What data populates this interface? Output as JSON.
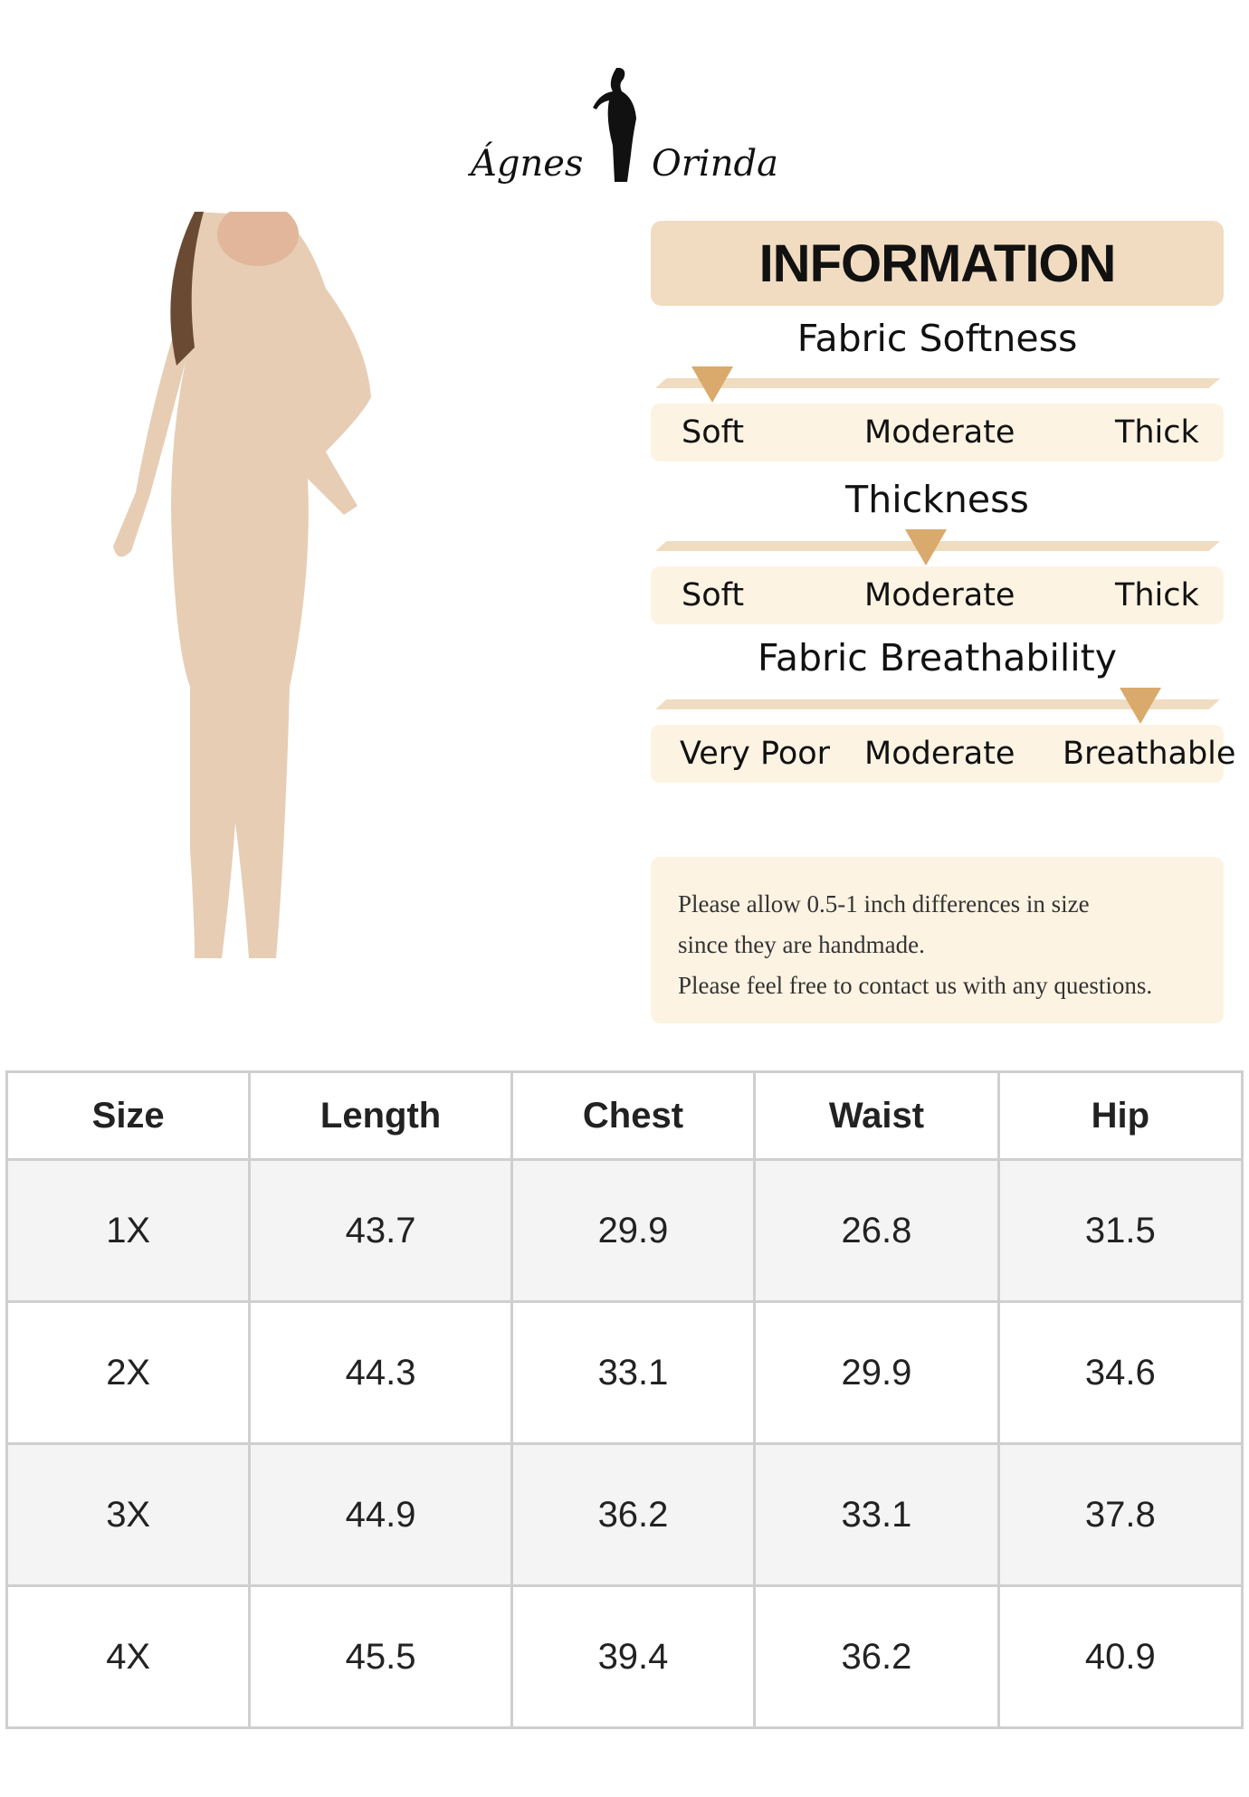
{
  "logo": {
    "brand": "Ágnes Orinda"
  },
  "info": {
    "heading": "INFORMATION",
    "scales": [
      {
        "title": "Fabric Softness",
        "labels": [
          "Soft",
          "Moderate",
          "Thick"
        ],
        "selected": "Soft",
        "level": 0.05
      },
      {
        "title": "Thickness",
        "labels": [
          "Soft",
          "Moderate",
          "Thick"
        ],
        "selected": "Moderate",
        "level": 0.5
      },
      {
        "title": "Fabric Breathability",
        "labels": [
          "Very Poor",
          "Moderate",
          "Breathable"
        ],
        "selected": "Breathable",
        "level": 0.9
      }
    ],
    "note": [
      "Please allow 0.5-1 inch differences in size",
      "since they are handmade.",
      "Please feel free to contact us with any questions."
    ]
  },
  "colors": {
    "header_bg": "#f1dcc1",
    "band_bg": "#fdf3e2",
    "marker": "#d9aa6b"
  },
  "size_table": {
    "headers": [
      "Size",
      "Length",
      "Chest",
      "Waist",
      "Hip"
    ],
    "rows": [
      [
        "1X",
        "43.7",
        "29.9",
        "26.8",
        "31.5"
      ],
      [
        "2X",
        "44.3",
        "33.1",
        "29.9",
        "34.6"
      ],
      [
        "3X",
        "44.9",
        "36.2",
        "33.1",
        "37.8"
      ],
      [
        "4X",
        "45.5",
        "39.4",
        "36.2",
        "40.9"
      ]
    ]
  }
}
